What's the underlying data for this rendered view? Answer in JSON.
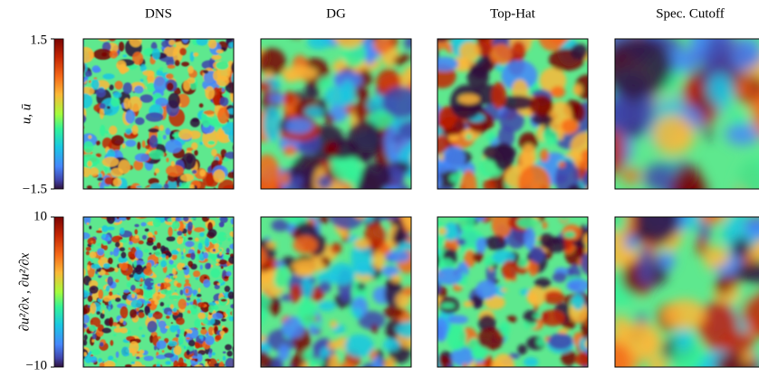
{
  "columns": [
    "DNS",
    "DG",
    "Top-Hat",
    "Spec. Cutoff"
  ],
  "rows": [
    {
      "label": "u, ū",
      "ticks": [
        {
          "value": 1.5,
          "label": "1.5"
        },
        {
          "value": -1.5,
          "label": "−1.5"
        }
      ]
    },
    {
      "label": "∂u²/∂x , ∂u²/∂x",
      "ticks": [
        10,
        {
          "value": -10,
          "label": "−10"
        }
      ]
    }
  ]
}
